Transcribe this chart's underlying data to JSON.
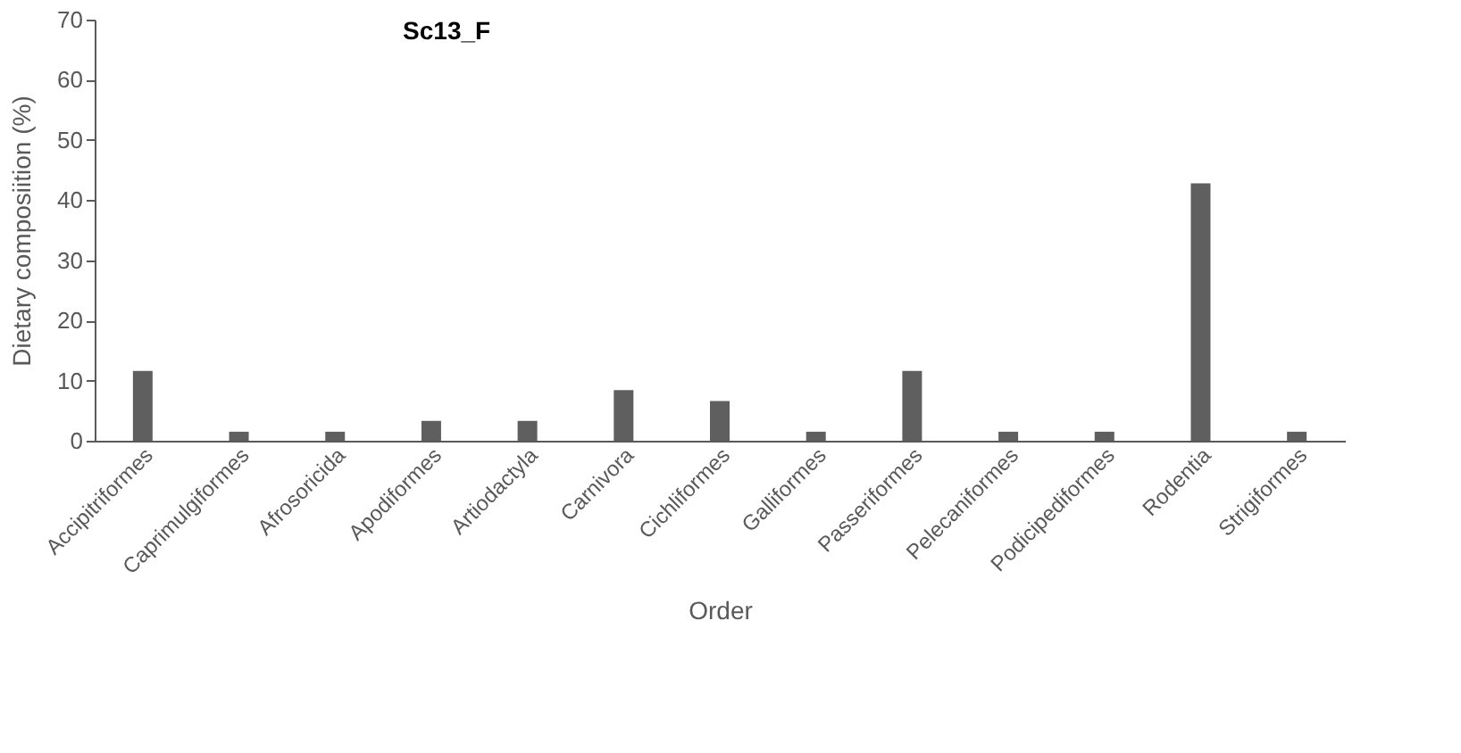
{
  "chart_data": {
    "type": "bar",
    "title": "Sc13_F",
    "xlabel": "Order",
    "ylabel": "Dietary composiition (%)",
    "categories": [
      "Accipitriformes",
      "Caprimulgiformes",
      "Afrosoricida",
      "Apodiformes",
      "Artiodactyla",
      "Carnivora",
      "Cichliformes",
      "Galliformes",
      "Passeriformes",
      "Pelecaniformes",
      "Podicipediformes",
      "Rodentia",
      "Strigiformes"
    ],
    "values": [
      11.6,
      1.5,
      1.5,
      3.3,
      3.3,
      8.4,
      6.6,
      1.5,
      11.6,
      1.5,
      1.5,
      42.8,
      1.5
    ],
    "color": "#5f5f5f",
    "ylim": [
      0,
      70
    ],
    "yticks": [
      0,
      10,
      20,
      30,
      40,
      50,
      60,
      70
    ],
    "grid": false
  }
}
